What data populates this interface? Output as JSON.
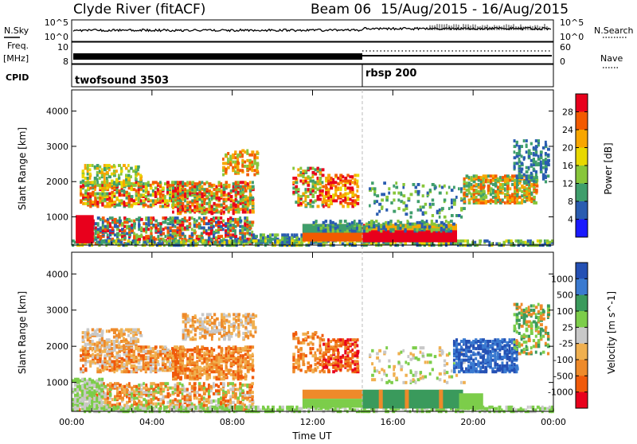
{
  "header": {
    "station": "Clyde River (fitACF)",
    "beam_label": "Beam 06",
    "date_range": "15/Aug/2015 - 16/Aug/2015"
  },
  "side_labels": {
    "nsky": "N.Sky",
    "freq_line1": "Freq.",
    "freq_line2": "[MHz]",
    "cpid": "CPID",
    "nsearch": "N.Search",
    "nave": "Nave"
  },
  "noise_panel": {
    "left_ticks": [
      "10^5",
      "10^0"
    ],
    "right_ticks": [
      "10^5",
      "10^0"
    ]
  },
  "freq_panel": {
    "left_ticks": [
      "10",
      "8"
    ],
    "right_ticks": [
      "60",
      "0"
    ]
  },
  "cpid_panel": {
    "segments": [
      {
        "label": "twofsound 3503",
        "start_hour": 0
      },
      {
        "label": "rbsp 200",
        "start_hour": 14.55
      }
    ]
  },
  "chart_data": [
    {
      "type": "heatmap",
      "panel": "power",
      "ylabel": "Slant Range [km]",
      "xlabel": "Time UT",
      "x_ticks": [
        "00:00",
        "04:00",
        "08:00",
        "12:00",
        "16:00",
        "20:00",
        "00:00"
      ],
      "y_ticks": [
        1000,
        2000,
        3000,
        4000
      ],
      "xlim": [
        0,
        24
      ],
      "ylim": [
        200,
        4600
      ],
      "colorbar": {
        "label": "Power [dB]",
        "ticks": [
          "28",
          "24",
          "20",
          "16",
          "12",
          "8",
          "4"
        ],
        "colors": [
          "#e8001c",
          "#f35a00",
          "#f8a600",
          "#e8d800",
          "#88c63a",
          "#3f9e6c",
          "#2a5cb0",
          "#1a1aff"
        ]
      }
    },
    {
      "type": "heatmap",
      "panel": "velocity",
      "ylabel": "Slant Range [km]",
      "xlabel": "Time UT",
      "x_ticks": [
        "00:00",
        "04:00",
        "08:00",
        "12:00",
        "16:00",
        "20:00",
        "00:00"
      ],
      "y_ticks": [
        1000,
        2000,
        3000,
        4000
      ],
      "xlim": [
        0,
        24
      ],
      "ylim": [
        200,
        4600
      ],
      "colorbar": {
        "label": "Velocity [m s^-1]",
        "ticks": [
          "1000",
          "500",
          "100",
          "25",
          "-25",
          "-100",
          "-500",
          "-1000"
        ],
        "colors": [
          "#2450b4",
          "#3a7ad0",
          "#3a9a5c",
          "#7ccd4a",
          "#c8c8c8",
          "#f0b050",
          "#ee8a2a",
          "#f05a0a",
          "#e8001c"
        ]
      }
    }
  ],
  "time_axis_label": "Time UT"
}
